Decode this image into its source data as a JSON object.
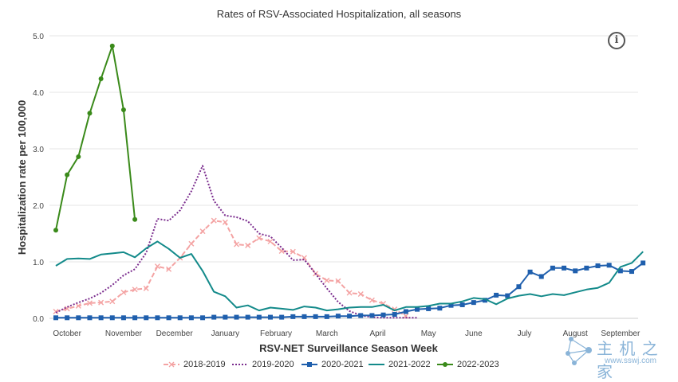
{
  "chart_data": {
    "type": "line",
    "title": "Rates of RSV-Associated Hospitalization, all seasons",
    "xlabel": "RSV-NET Surveillance Season Week",
    "ylabel": "Hospitalization rate per 100,000",
    "ylim": [
      0,
      5
    ],
    "yticks": [
      "0.0",
      "1.0",
      "2.0",
      "3.0",
      "4.0",
      "5.0"
    ],
    "xlim": [
      1,
      52
    ],
    "month_labels": [
      {
        "label": "October",
        "week": 2
      },
      {
        "label": "November",
        "week": 7
      },
      {
        "label": "December",
        "week": 11.5
      },
      {
        "label": "January",
        "week": 16
      },
      {
        "label": "February",
        "week": 20.5
      },
      {
        "label": "March",
        "week": 25
      },
      {
        "label": "April",
        "week": 29.5
      },
      {
        "label": "May",
        "week": 34
      },
      {
        "label": "June",
        "week": 38
      },
      {
        "label": "July",
        "week": 42.5
      },
      {
        "label": "August",
        "week": 47
      },
      {
        "label": "September",
        "week": 51
      }
    ],
    "grid": true,
    "legend": "bottom",
    "series": [
      {
        "name": "2018-2019",
        "color": "#f4a3a3",
        "dash": "6,3",
        "marker": "x",
        "values": [
          0.12,
          0.17,
          0.22,
          0.27,
          0.28,
          0.3,
          0.46,
          0.51,
          0.53,
          0.92,
          0.87,
          1.07,
          1.32,
          1.54,
          1.73,
          1.7,
          1.31,
          1.29,
          1.42,
          1.36,
          1.19,
          1.18,
          1.07,
          0.79,
          0.67,
          0.66,
          0.45,
          0.43,
          0.32,
          0.26,
          0.16,
          0.04
        ]
      },
      {
        "name": "2019-2020",
        "color": "#7b2d8e",
        "dash": "2,2",
        "marker": "none",
        "values": [
          0.1,
          0.2,
          0.28,
          0.35,
          0.45,
          0.59,
          0.76,
          0.87,
          1.16,
          1.76,
          1.73,
          1.91,
          2.25,
          2.7,
          2.08,
          1.82,
          1.79,
          1.72,
          1.5,
          1.45,
          1.25,
          1.03,
          1.04,
          0.79,
          0.53,
          0.29,
          0.13,
          0.05,
          0.02,
          0.01,
          0.01,
          0.01,
          0.01
        ]
      },
      {
        "name": "2020-2021",
        "color": "#1f5fad",
        "dash": "",
        "marker": "square",
        "values": [
          0.01,
          0.01,
          0.01,
          0.01,
          0.01,
          0.01,
          0.01,
          0.01,
          0.01,
          0.01,
          0.01,
          0.01,
          0.01,
          0.01,
          0.02,
          0.02,
          0.02,
          0.02,
          0.02,
          0.02,
          0.02,
          0.03,
          0.03,
          0.03,
          0.03,
          0.04,
          0.04,
          0.05,
          0.05,
          0.06,
          0.07,
          0.12,
          0.16,
          0.17,
          0.18,
          0.23,
          0.24,
          0.28,
          0.32,
          0.41,
          0.4,
          0.56,
          0.82,
          0.74,
          0.89,
          0.89,
          0.84,
          0.89,
          0.93,
          0.94,
          0.84,
          0.83,
          0.98
        ]
      },
      {
        "name": "2021-2022",
        "color": "#138a8a",
        "dash": "",
        "marker": "none",
        "values": [
          0.93,
          1.05,
          1.06,
          1.05,
          1.13,
          1.15,
          1.17,
          1.08,
          1.24,
          1.36,
          1.23,
          1.07,
          1.14,
          0.84,
          0.47,
          0.39,
          0.19,
          0.23,
          0.14,
          0.19,
          0.17,
          0.15,
          0.21,
          0.19,
          0.14,
          0.16,
          0.19,
          0.2,
          0.2,
          0.24,
          0.14,
          0.2,
          0.2,
          0.22,
          0.26,
          0.26,
          0.3,
          0.36,
          0.34,
          0.25,
          0.35,
          0.4,
          0.43,
          0.39,
          0.43,
          0.41,
          0.46,
          0.51,
          0.54,
          0.63,
          0.91,
          0.98,
          1.18
        ]
      },
      {
        "name": "2022-2023",
        "color": "#3a8a1a",
        "dash": "",
        "marker": "circle",
        "values": [
          1.56,
          2.54,
          2.86,
          3.63,
          4.24,
          4.82,
          3.69,
          1.75
        ]
      }
    ]
  }
}
